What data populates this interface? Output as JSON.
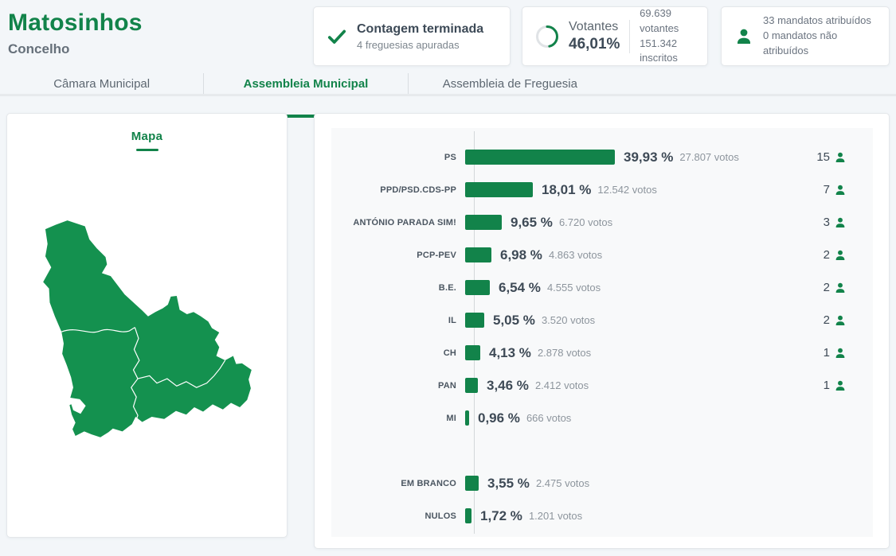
{
  "header": {
    "title": "Matosinhos",
    "subtitle": "Concelho"
  },
  "status_cards": {
    "counting": {
      "title": "Contagem terminada",
      "subtitle": "4 freguesias apuradas"
    },
    "turnout": {
      "label": "Votantes",
      "percent_text": "46,01%",
      "percent_value": 46.01,
      "voters": "69.639 votantes",
      "registered": "151.342 inscritos"
    },
    "mandates": {
      "line1": "33 mandatos atribuídos",
      "line2": "0 mandatos não atribuídos"
    }
  },
  "tabs": [
    {
      "label": "Câmara Municipal",
      "active": false
    },
    {
      "label": "Assembleia Municipal",
      "active": true
    },
    {
      "label": "Assembleia de Freguesia",
      "active": false
    }
  ],
  "map": {
    "title": "Mapa"
  },
  "chart_data": {
    "type": "bar",
    "orientation": "horizontal",
    "value_unit": "%",
    "xlim": [
      0,
      100
    ],
    "grid": false,
    "rows": [
      {
        "party": "PS",
        "percent_text": "39,93 %",
        "value": 39.93,
        "votes_text": "27.807 votos",
        "mandates": 15,
        "gap_before": false
      },
      {
        "party": "PPD/PSD.CDS-PP",
        "percent_text": "18,01 %",
        "value": 18.01,
        "votes_text": "12.542 votos",
        "mandates": 7,
        "gap_before": false
      },
      {
        "party": "ANTÓNIO PARADA SIM!",
        "percent_text": "9,65 %",
        "value": 9.65,
        "votes_text": "6.720 votos",
        "mandates": 3,
        "gap_before": false
      },
      {
        "party": "PCP-PEV",
        "percent_text": "6,98 %",
        "value": 6.98,
        "votes_text": "4.863 votos",
        "mandates": 2,
        "gap_before": false
      },
      {
        "party": "B.E.",
        "percent_text": "6,54 %",
        "value": 6.54,
        "votes_text": "4.555 votos",
        "mandates": 2,
        "gap_before": false
      },
      {
        "party": "IL",
        "percent_text": "5,05 %",
        "value": 5.05,
        "votes_text": "3.520 votos",
        "mandates": 2,
        "gap_before": false
      },
      {
        "party": "CH",
        "percent_text": "4,13 %",
        "value": 4.13,
        "votes_text": "2.878 votos",
        "mandates": 1,
        "gap_before": false
      },
      {
        "party": "PAN",
        "percent_text": "3,46 %",
        "value": 3.46,
        "votes_text": "2.412 votos",
        "mandates": 1,
        "gap_before": false
      },
      {
        "party": "MI",
        "percent_text": "0,96 %",
        "value": 0.96,
        "votes_text": "666 votos",
        "mandates": null,
        "gap_before": false
      },
      {
        "party": "EM BRANCO",
        "percent_text": "3,55 %",
        "value": 3.55,
        "votes_text": "2.475 votos",
        "mandates": null,
        "gap_before": true
      },
      {
        "party": "NULOS",
        "percent_text": "1,72 %",
        "value": 1.72,
        "votes_text": "1.201 votos",
        "mandates": null,
        "gap_before": false
      }
    ]
  },
  "colors": {
    "primary_green": "#12834a",
    "map_green": "#14914f",
    "dark_text": "#3e4a56",
    "muted_text": "#8d959d",
    "page_background": "#f3f6f9",
    "chart_background": "#f8f9fa"
  }
}
